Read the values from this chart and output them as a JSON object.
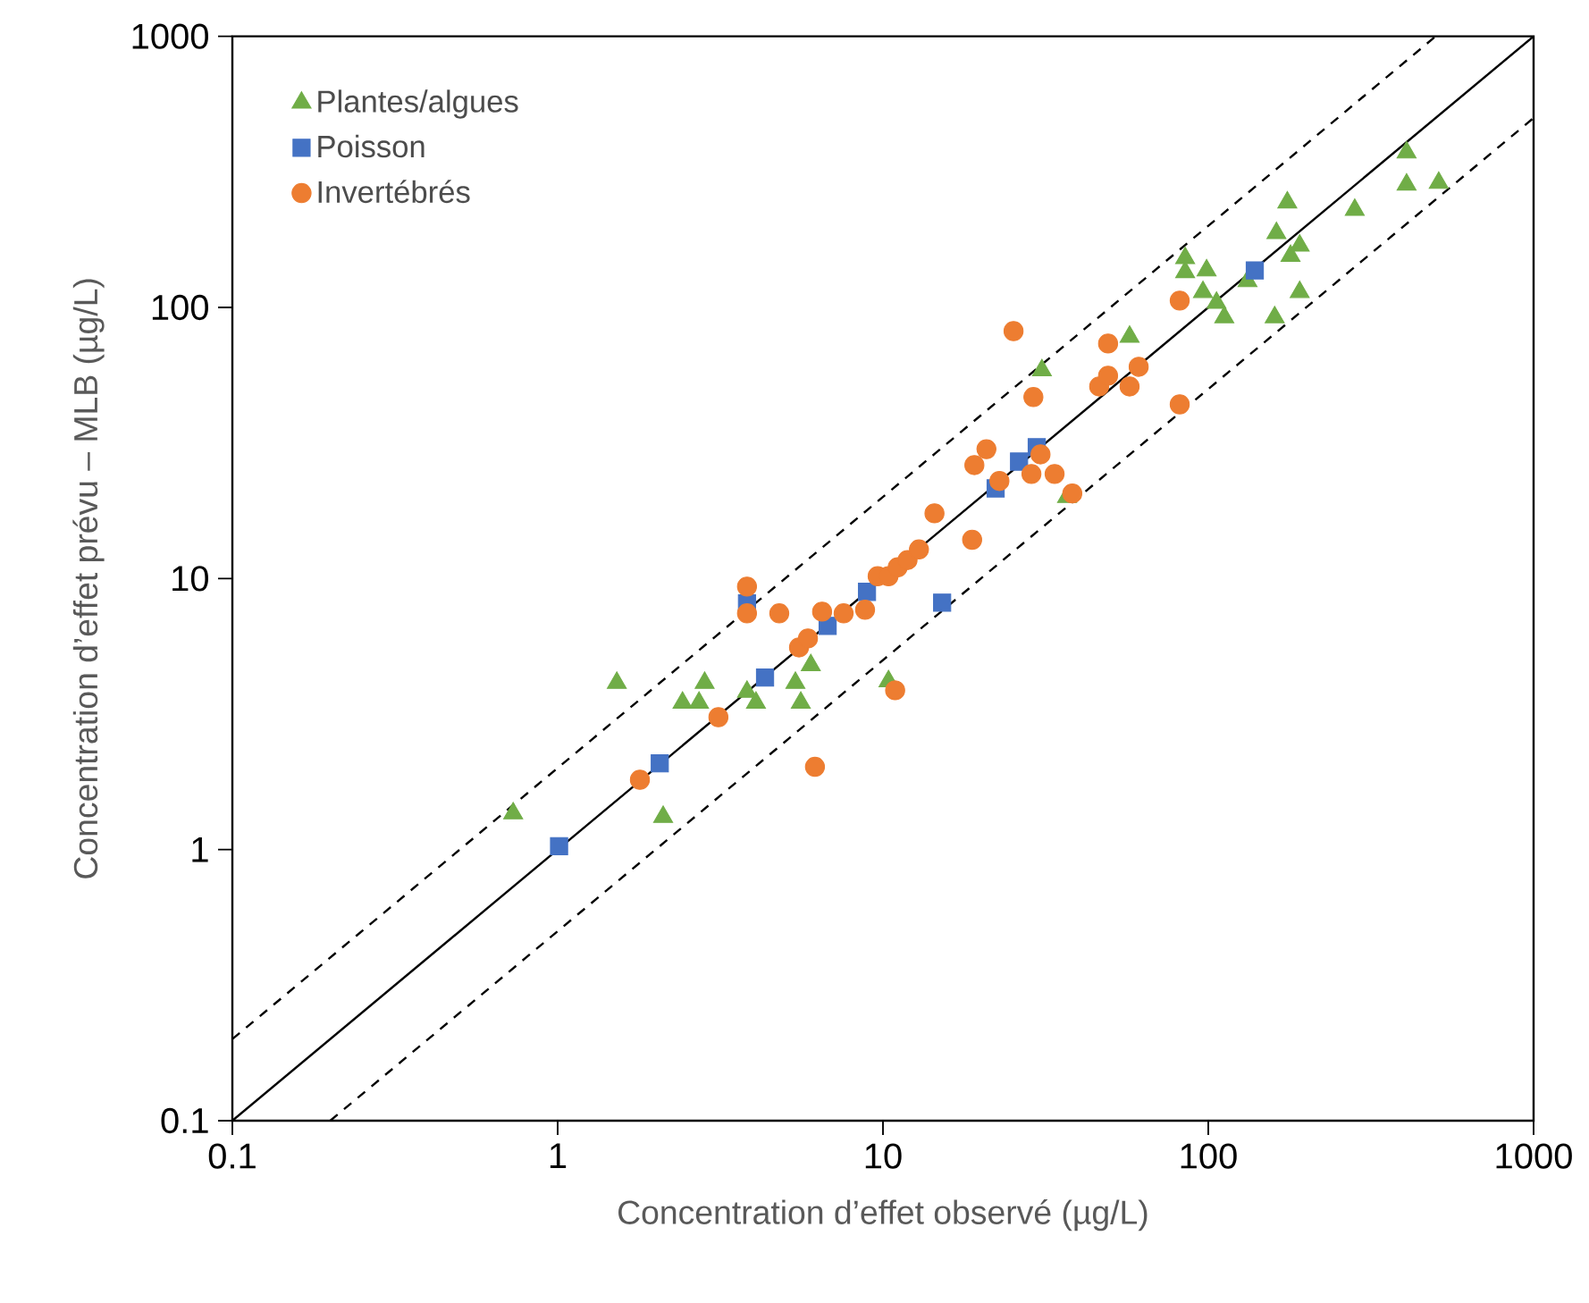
{
  "chart_data": {
    "type": "scatter",
    "xlabel": "Concentration d’effet observé (µg/L)",
    "ylabel": "Concentration d’effet prévu – MLB (µg/L)",
    "log": "xy",
    "xlim": [
      0.1,
      1000
    ],
    "ylim": [
      0.1,
      1000
    ],
    "xticks": [
      0.1,
      1,
      10,
      100,
      1000
    ],
    "yticks": [
      0.1,
      1,
      10,
      100,
      1000
    ],
    "legend": "top left",
    "series": [
      {
        "name": "Plantes/algues",
        "color": "#70ad47",
        "marker": "triangle",
        "x": [
          0.73,
          1.52,
          2.11,
          2.42,
          2.72,
          2.83,
          3.82,
          4.07,
          5.38,
          5.59,
          6.0,
          10.4,
          30.8,
          57.3,
          36.8,
          84.9,
          84.9,
          98.8,
          96.3,
          106,
          112,
          132,
          160,
          162,
          175,
          179,
          191,
          191,
          282,
          407,
          407,
          511
        ],
        "values": [
          1.36,
          4.12,
          1.32,
          3.48,
          3.48,
          4.12,
          3.82,
          3.48,
          4.12,
          3.48,
          4.79,
          4.18,
          58.6,
          78,
          20,
          152,
          135,
          137,
          114,
          104,
          92,
          125,
          92,
          188,
          244,
          155,
          169,
          114,
          229,
          373,
          284,
          288
        ]
      },
      {
        "name": "Poisson",
        "color": "#4472c4",
        "marker": "square",
        "x": [
          1.01,
          2.06,
          4.34,
          3.82,
          6.76,
          8.93,
          15.2,
          22.2,
          26.2,
          29.7,
          139
        ],
        "values": [
          1.03,
          2.08,
          4.31,
          8.1,
          6.69,
          8.93,
          8.15,
          21.5,
          27.0,
          30.5,
          137
        ]
      },
      {
        "name": "Invertébrés",
        "color": "#ed7d31",
        "marker": "circle",
        "x": [
          1.79,
          3.12,
          3.82,
          3.82,
          4.8,
          5.52,
          5.88,
          6.5,
          7.57,
          8.81,
          6.18,
          9.63,
          10.4,
          11.1,
          11.9,
          12.9,
          14.4,
          18.8,
          10.9,
          19.1,
          20.8,
          22.8,
          28.6,
          30.5,
          33.7,
          38.2,
          25.2,
          29.0,
          49.2,
          46.2,
          49.2,
          57.3,
          61.1,
          81.7,
          81.7
        ],
        "values": [
          1.81,
          3.08,
          9.34,
          7.44,
          7.44,
          5.57,
          6.01,
          7.55,
          7.44,
          7.67,
          2.02,
          10.2,
          10.2,
          11.0,
          11.7,
          12.8,
          17.4,
          13.9,
          3.87,
          26.2,
          30.0,
          22.9,
          24.3,
          28.7,
          24.3,
          20.6,
          81.8,
          46.7,
          73.6,
          51.1,
          56.0,
          51.1,
          60.4,
          106,
          43.9
        ]
      },
      {
        "type": "line",
        "color": "#000000",
        "marker": "none",
        "line_style": "solid",
        "x": [
          0.1,
          1000
        ],
        "values": [
          0.1,
          1000
        ]
      },
      {
        "type": "line",
        "color": "#000000",
        "marker": "none",
        "line_style": "dashed",
        "x": [
          0.1,
          500
        ],
        "values": [
          0.2,
          1000
        ]
      },
      {
        "type": "line",
        "color": "#000000",
        "marker": "none",
        "line_style": "dashed",
        "x": [
          0.2,
          1000
        ],
        "values": [
          0.1,
          500
        ]
      }
    ]
  }
}
